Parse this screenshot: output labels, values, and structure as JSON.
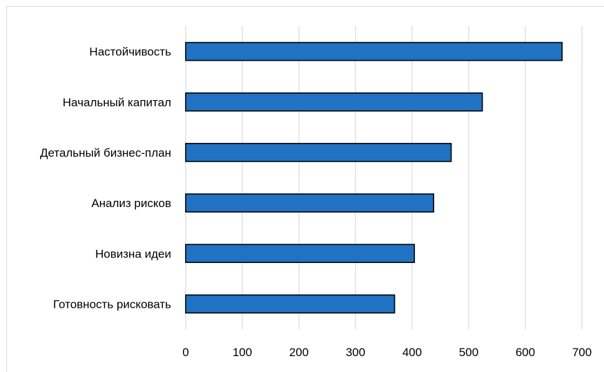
{
  "chart_data": {
    "type": "bar",
    "orientation": "horizontal",
    "categories": [
      "Настойчивость",
      "Начальный капитал",
      "Детальный бизнес-план",
      "Анализ рисков",
      "Новизна идеи",
      "Готовность рисковать"
    ],
    "values": [
      665,
      524,
      469,
      438,
      404,
      369
    ],
    "xlim": [
      0,
      700
    ],
    "xticks": [
      "0",
      "100",
      "200",
      "300",
      "400",
      "500",
      "600",
      "700"
    ],
    "grid": "vertical",
    "legend": "none",
    "bar_color": "#2272c3",
    "bar_edge_color": "#000000",
    "grid_color": "#d9d9d9"
  }
}
